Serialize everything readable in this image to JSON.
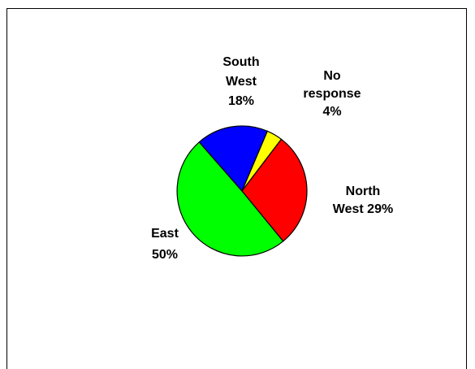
{
  "chart_data": {
    "type": "pie",
    "title": "",
    "slices": [
      {
        "label_lines": [
          "No",
          "response",
          "4%"
        ],
        "value": 4,
        "color": "#ffff00"
      },
      {
        "label_lines": [
          "North",
          "West 29%"
        ],
        "value": 29,
        "color": "#ff0000"
      },
      {
        "label_lines": [
          "East",
          "50%"
        ],
        "value": 50,
        "color": "#00ff00"
      },
      {
        "label_lines": [
          "South",
          "West",
          "18%"
        ],
        "value": 18,
        "color": "#0000ff"
      }
    ],
    "legend": "none"
  }
}
